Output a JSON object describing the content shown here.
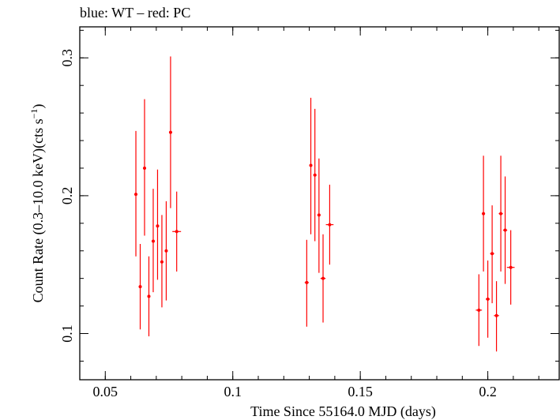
{
  "chart_data": {
    "type": "scatter",
    "title": "blue: WT – red: PC",
    "xlabel": "Time Since 55164.0 MJD (days)",
    "ylabel": {
      "main": "Count Rate (0.3–10.0 keV)(cts s",
      "superscript": "−1",
      "close": ")"
    },
    "xlim": [
      0.04,
      0.228
    ],
    "ylim": [
      0.0665,
      0.3225
    ],
    "x_ticks": [
      {
        "value": 0.05,
        "label": "0.05"
      },
      {
        "value": 0.1,
        "label": "0.1"
      },
      {
        "value": 0.15,
        "label": "0.15"
      },
      {
        "value": 0.2,
        "label": "0.2"
      }
    ],
    "y_ticks": [
      {
        "value": 0.1,
        "label": "0.1"
      },
      {
        "value": 0.2,
        "label": "0.2"
      },
      {
        "value": 0.3,
        "label": "0.3"
      }
    ],
    "x_minor_step": 0.01,
    "y_minor_step": 0.02,
    "grid": false,
    "series": [
      {
        "color": "#ff0000",
        "points": [
          {
            "x": 0.062,
            "xerr": 0.0006,
            "y": 0.201,
            "ylow": 0.156,
            "yhigh": 0.247
          },
          {
            "x": 0.0637,
            "xerr": 0.0006,
            "y": 0.134,
            "ylow": 0.103,
            "yhigh": 0.165
          },
          {
            "x": 0.0654,
            "xerr": 0.0006,
            "y": 0.22,
            "ylow": 0.171,
            "yhigh": 0.27
          },
          {
            "x": 0.0671,
            "xerr": 0.0006,
            "y": 0.127,
            "ylow": 0.098,
            "yhigh": 0.156
          },
          {
            "x": 0.0688,
            "xerr": 0.0006,
            "y": 0.167,
            "ylow": 0.13,
            "yhigh": 0.205
          },
          {
            "x": 0.0705,
            "xerr": 0.0006,
            "y": 0.178,
            "ylow": 0.139,
            "yhigh": 0.219
          },
          {
            "x": 0.0722,
            "xerr": 0.0006,
            "y": 0.152,
            "ylow": 0.119,
            "yhigh": 0.186
          },
          {
            "x": 0.0739,
            "xerr": 0.0006,
            "y": 0.16,
            "ylow": 0.124,
            "yhigh": 0.196
          },
          {
            "x": 0.0756,
            "xerr": 0.0006,
            "y": 0.246,
            "ylow": 0.191,
            "yhigh": 0.301
          },
          {
            "x": 0.078,
            "xerr": 0.0017,
            "y": 0.174,
            "ylow": 0.145,
            "yhigh": 0.203
          },
          {
            "x": 0.129,
            "xerr": 0.0008,
            "y": 0.137,
            "ylow": 0.105,
            "yhigh": 0.168
          },
          {
            "x": 0.1306,
            "xerr": 0.0006,
            "y": 0.222,
            "ylow": 0.172,
            "yhigh": 0.271
          },
          {
            "x": 0.1322,
            "xerr": 0.0006,
            "y": 0.215,
            "ylow": 0.167,
            "yhigh": 0.263
          },
          {
            "x": 0.1338,
            "xerr": 0.0006,
            "y": 0.186,
            "ylow": 0.144,
            "yhigh": 0.227
          },
          {
            "x": 0.1354,
            "xerr": 0.001,
            "y": 0.14,
            "ylow": 0.108,
            "yhigh": 0.172
          },
          {
            "x": 0.138,
            "xerr": 0.0015,
            "y": 0.179,
            "ylow": 0.15,
            "yhigh": 0.208
          },
          {
            "x": 0.1965,
            "xerr": 0.0012,
            "y": 0.117,
            "ylow": 0.091,
            "yhigh": 0.143
          },
          {
            "x": 0.1983,
            "xerr": 0.0006,
            "y": 0.187,
            "ylow": 0.145,
            "yhigh": 0.229
          },
          {
            "x": 0.2,
            "xerr": 0.0008,
            "y": 0.125,
            "ylow": 0.097,
            "yhigh": 0.153
          },
          {
            "x": 0.2017,
            "xerr": 0.0008,
            "y": 0.158,
            "ylow": 0.122,
            "yhigh": 0.193
          },
          {
            "x": 0.2034,
            "xerr": 0.001,
            "y": 0.113,
            "ylow": 0.087,
            "yhigh": 0.138
          },
          {
            "x": 0.2051,
            "xerr": 0.0008,
            "y": 0.187,
            "ylow": 0.145,
            "yhigh": 0.229
          },
          {
            "x": 0.2068,
            "xerr": 0.0008,
            "y": 0.175,
            "ylow": 0.136,
            "yhigh": 0.214
          },
          {
            "x": 0.209,
            "xerr": 0.0015,
            "y": 0.148,
            "ylow": 0.121,
            "yhigh": 0.175
          }
        ]
      }
    ]
  }
}
